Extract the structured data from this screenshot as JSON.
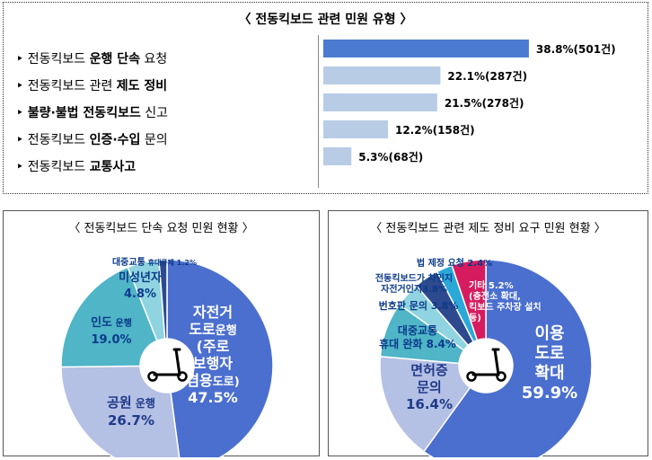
{
  "top_panel": {
    "title": "〈 전동킥보드 관련 민원 유형 〉",
    "items": [
      {
        "bullet": "‣",
        "pre": "전동킥보드 ",
        "bold": "운행 단속",
        "post": " 요청"
      },
      {
        "bullet": "‣",
        "pre": "전동킥보드 관련 ",
        "bold": "제도 정비",
        "post": ""
      },
      {
        "bullet": "‣",
        "pre": "",
        "bold": "불량·불법 전동킥보드",
        "post": " 신고"
      },
      {
        "bullet": "‣",
        "pre": "전동킥보드 ",
        "bold": "인증·수입",
        "post": " 문의"
      },
      {
        "bullet": "‣",
        "pre": "전동킥보드 ",
        "bold": "교통사고",
        "post": ""
      }
    ]
  },
  "left_panel": {
    "title": "〈 전동킥보드 단속 요청 민원 현황 〉"
  },
  "right_panel": {
    "title": "〈 전동킥보드 관련 제도 정비 요구 민원 현황 〉"
  },
  "chart_data": [
    {
      "type": "bar",
      "orientation": "horizontal",
      "title": "〈 전동킥보드 관련 민원 유형 〉",
      "categories": [
        "전동킥보드 운행 단속 요청",
        "전동킥보드 관련 제도 정비",
        "불량·불법 전동킥보드 신고",
        "전동킥보드 인증·수입 문의",
        "전동킥보드 교통사고"
      ],
      "values": [
        38.8,
        22.1,
        21.5,
        12.2,
        5.3
      ],
      "counts": [
        501,
        287,
        278,
        158,
        68
      ],
      "labels": [
        "38.8%(501건)",
        "22.1%(287건)",
        "21.5%(278건)",
        "12.2%(158건)",
        "5.3%(68건)"
      ],
      "colors": [
        "#4a7bd0",
        "#b8cce6",
        "#b8cce6",
        "#b8cce6",
        "#b8cce6"
      ],
      "xlim": [
        0,
        40
      ]
    },
    {
      "type": "pie",
      "donut": true,
      "title": "〈 전동킥보드 단속 요청 민원 현황 〉",
      "slices": [
        {
          "name": "자전거도로운행(주로보행자겸용도로)",
          "value": 47.5,
          "color": "#4b6fcf",
          "lines": [
            [
              "자전거",
              ""
            ],
            [
              "도로",
              "운행"
            ],
            [
              "(주로",
              ""
            ],
            [
              "보행자",
              ""
            ],
            [
              "겸용",
              "도로)"
            ],
            [
              "47.5%",
              ""
            ]
          ],
          "textColor": "#ffffff"
        },
        {
          "name": "공원 운행",
          "value": 26.7,
          "color": "#b4c0e4",
          "lines": [
            [
              "공원",
              " 운행"
            ],
            [
              "26.7%",
              ""
            ]
          ],
          "textColor": "#1f3a8a"
        },
        {
          "name": "인도 운행",
          "value": 19.0,
          "color": "#4fb5c7",
          "lines": [
            [
              "인도",
              " 운행"
            ],
            [
              "19.0%",
              ""
            ]
          ],
          "textColor": "#0b3a8a"
        },
        {
          "name": "미성년자",
          "value": 4.8,
          "color": "#8fd4e0",
          "lines": [
            [
              "미성년자",
              ""
            ],
            [
              "4.8%",
              ""
            ]
          ],
          "textColor": "#0b3a8a"
        },
        {
          "name": "대중교통 휴대규제",
          "value": 1.2,
          "color": "#2e4a8f",
          "lines": [
            [
              "대중교통",
              " 휴대규제 1.2%"
            ]
          ],
          "textColor": "#0b3a8a"
        }
      ]
    },
    {
      "type": "pie",
      "donut": true,
      "title": "〈 전동킥보드 관련 제도 정비 요구 민원 현황 〉",
      "slices": [
        {
          "name": "이용도로확대",
          "value": 59.9,
          "color": "#4b6fcf",
          "lines": [
            [
              "이용",
              ""
            ],
            [
              "도로",
              ""
            ],
            [
              "확대",
              ""
            ],
            [
              "59.9%",
              ""
            ]
          ],
          "textColor": "#ffffff"
        },
        {
          "name": "면허증 문의",
          "value": 16.4,
          "color": "#b4c0e4",
          "lines": [
            [
              "면허증",
              ""
            ],
            [
              "문의",
              ""
            ],
            [
              "16.4%",
              ""
            ]
          ],
          "textColor": "#1f3a8a"
        },
        {
          "name": "대중교통 휴대 완화",
          "value": 8.4,
          "color": "#4fb5c7",
          "lines": [
            [
              "대중교통",
              ""
            ],
            [
              "휴대 완화 8.4%",
              ""
            ]
          ],
          "textColor": "#0b3a8a"
        },
        {
          "name": "번호판 문의",
          "value": 3.8,
          "color": "#8fd4e0",
          "lines": [
            [
              "번호판 문의 3.8%",
              ""
            ]
          ],
          "textColor": "#0b3a8a"
        },
        {
          "name": "전동킥보드가 차인지 자전거인지",
          "value": 3.8,
          "color": "#2e4a8f",
          "lines": [
            [
              "전동킥보드가 차인지",
              ""
            ],
            [
              "자전거인지3.8%",
              ""
            ]
          ],
          "textColor": "#0b3a8a"
        },
        {
          "name": "법 제정 요청",
          "value": 2.4,
          "color": "#2aa8d8",
          "lines": [
            [
              "법 제정 요청 2.4%",
              ""
            ]
          ],
          "textColor": "#0b3a8a"
        },
        {
          "name": "기타",
          "value": 5.2,
          "color": "#d61c5e",
          "lines": [
            [
              "기타 5.2%",
              ""
            ],
            [
              "(충전소 확대,",
              ""
            ],
            [
              "킥보드 주차장 설치",
              ""
            ],
            [
              "등)",
              ""
            ]
          ],
          "textColor": "#ffffff"
        }
      ]
    }
  ]
}
